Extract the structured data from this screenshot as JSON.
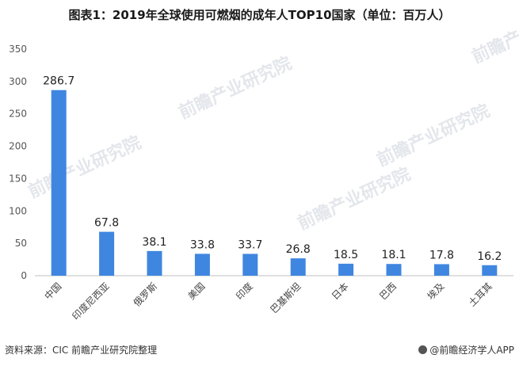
{
  "title": "图表1：2019年全球使用可燃烟的成年人TOP10国家（单位：百万人）",
  "footer": {
    "source": "资料来源：CIC 前瞻产业研究院整理",
    "brand": "@前瞻经济学人APP",
    "brand_icon": "brand-logo-icon"
  },
  "watermark": "前瞻产业研究院",
  "chart_data": {
    "type": "bar",
    "title": "图表1：2019年全球使用可燃烟的成年人TOP10国家（单位：百万人）",
    "categories": [
      "中国",
      "印度尼西亚",
      "俄罗斯",
      "美国",
      "印度",
      "巴基斯坦",
      "日本",
      "巴西",
      "埃及",
      "土耳其"
    ],
    "values": [
      286.7,
      67.8,
      38.1,
      33.8,
      33.7,
      26.8,
      18.5,
      18.1,
      17.8,
      16.2
    ],
    "value_labels": [
      "286.7",
      "67.8",
      "38.1",
      "33.8",
      "33.7",
      "26.8",
      "18.5",
      "18.1",
      "17.8",
      "16.2"
    ],
    "yticks": [
      "0",
      "50",
      "100",
      "150",
      "200",
      "250",
      "300",
      "350"
    ],
    "ylim": [
      0,
      350
    ],
    "bar_color": "#3f86e0",
    "grid": false,
    "legend": "none"
  }
}
